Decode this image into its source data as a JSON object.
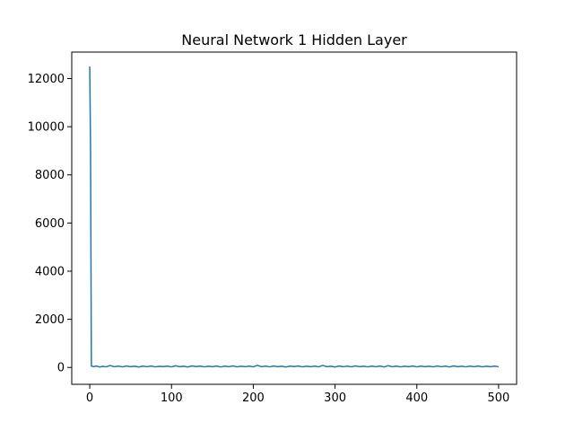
{
  "chart_data": {
    "type": "line",
    "title": "Neural Network 1 Hidden Layer",
    "xlabel": "",
    "ylabel": "",
    "xlim": [
      -22,
      522
    ],
    "ylim": [
      -700,
      13100
    ],
    "xticks": [
      0,
      100,
      200,
      300,
      400,
      500
    ],
    "yticks": [
      0,
      2000,
      4000,
      6000,
      8000,
      10000,
      12000
    ],
    "grid": false,
    "series": [
      {
        "color": "#1f77b4",
        "x": [
          0,
          1,
          2,
          5,
          8,
          12,
          16,
          20,
          25,
          30,
          35,
          40,
          45,
          50,
          55,
          60,
          65,
          70,
          75,
          80,
          85,
          90,
          95,
          100,
          105,
          110,
          115,
          120,
          125,
          130,
          135,
          140,
          145,
          150,
          155,
          160,
          165,
          170,
          175,
          180,
          185,
          190,
          195,
          200,
          205,
          210,
          215,
          220,
          225,
          230,
          235,
          240,
          245,
          250,
          255,
          260,
          265,
          270,
          275,
          280,
          285,
          290,
          295,
          300,
          305,
          310,
          315,
          320,
          325,
          330,
          335,
          340,
          345,
          350,
          355,
          360,
          365,
          370,
          375,
          380,
          385,
          390,
          395,
          400,
          405,
          410,
          415,
          420,
          425,
          430,
          435,
          440,
          445,
          450,
          455,
          460,
          465,
          470,
          475,
          480,
          485,
          490,
          495,
          500
        ],
        "y": [
          12500,
          9000,
          60,
          30,
          60,
          20,
          45,
          25,
          80,
          30,
          55,
          25,
          60,
          30,
          50,
          20,
          55,
          30,
          60,
          25,
          45,
          35,
          55,
          25,
          70,
          30,
          50,
          20,
          65,
          35,
          55,
          25,
          50,
          30,
          60,
          20,
          55,
          30,
          65,
          25,
          50,
          30,
          55,
          25,
          90,
          30,
          55,
          25,
          60,
          30,
          50,
          20,
          55,
          35,
          60,
          25,
          50,
          30,
          55,
          25,
          85,
          30,
          50,
          20,
          60,
          30,
          55,
          25,
          65,
          30,
          50,
          25,
          55,
          30,
          60,
          20,
          75,
          30,
          55,
          25,
          50,
          30,
          60,
          25,
          55,
          30,
          50,
          25,
          60,
          30,
          55,
          20,
          65,
          30,
          50,
          25,
          55,
          30,
          60,
          25,
          50,
          30,
          55,
          30
        ]
      }
    ]
  }
}
